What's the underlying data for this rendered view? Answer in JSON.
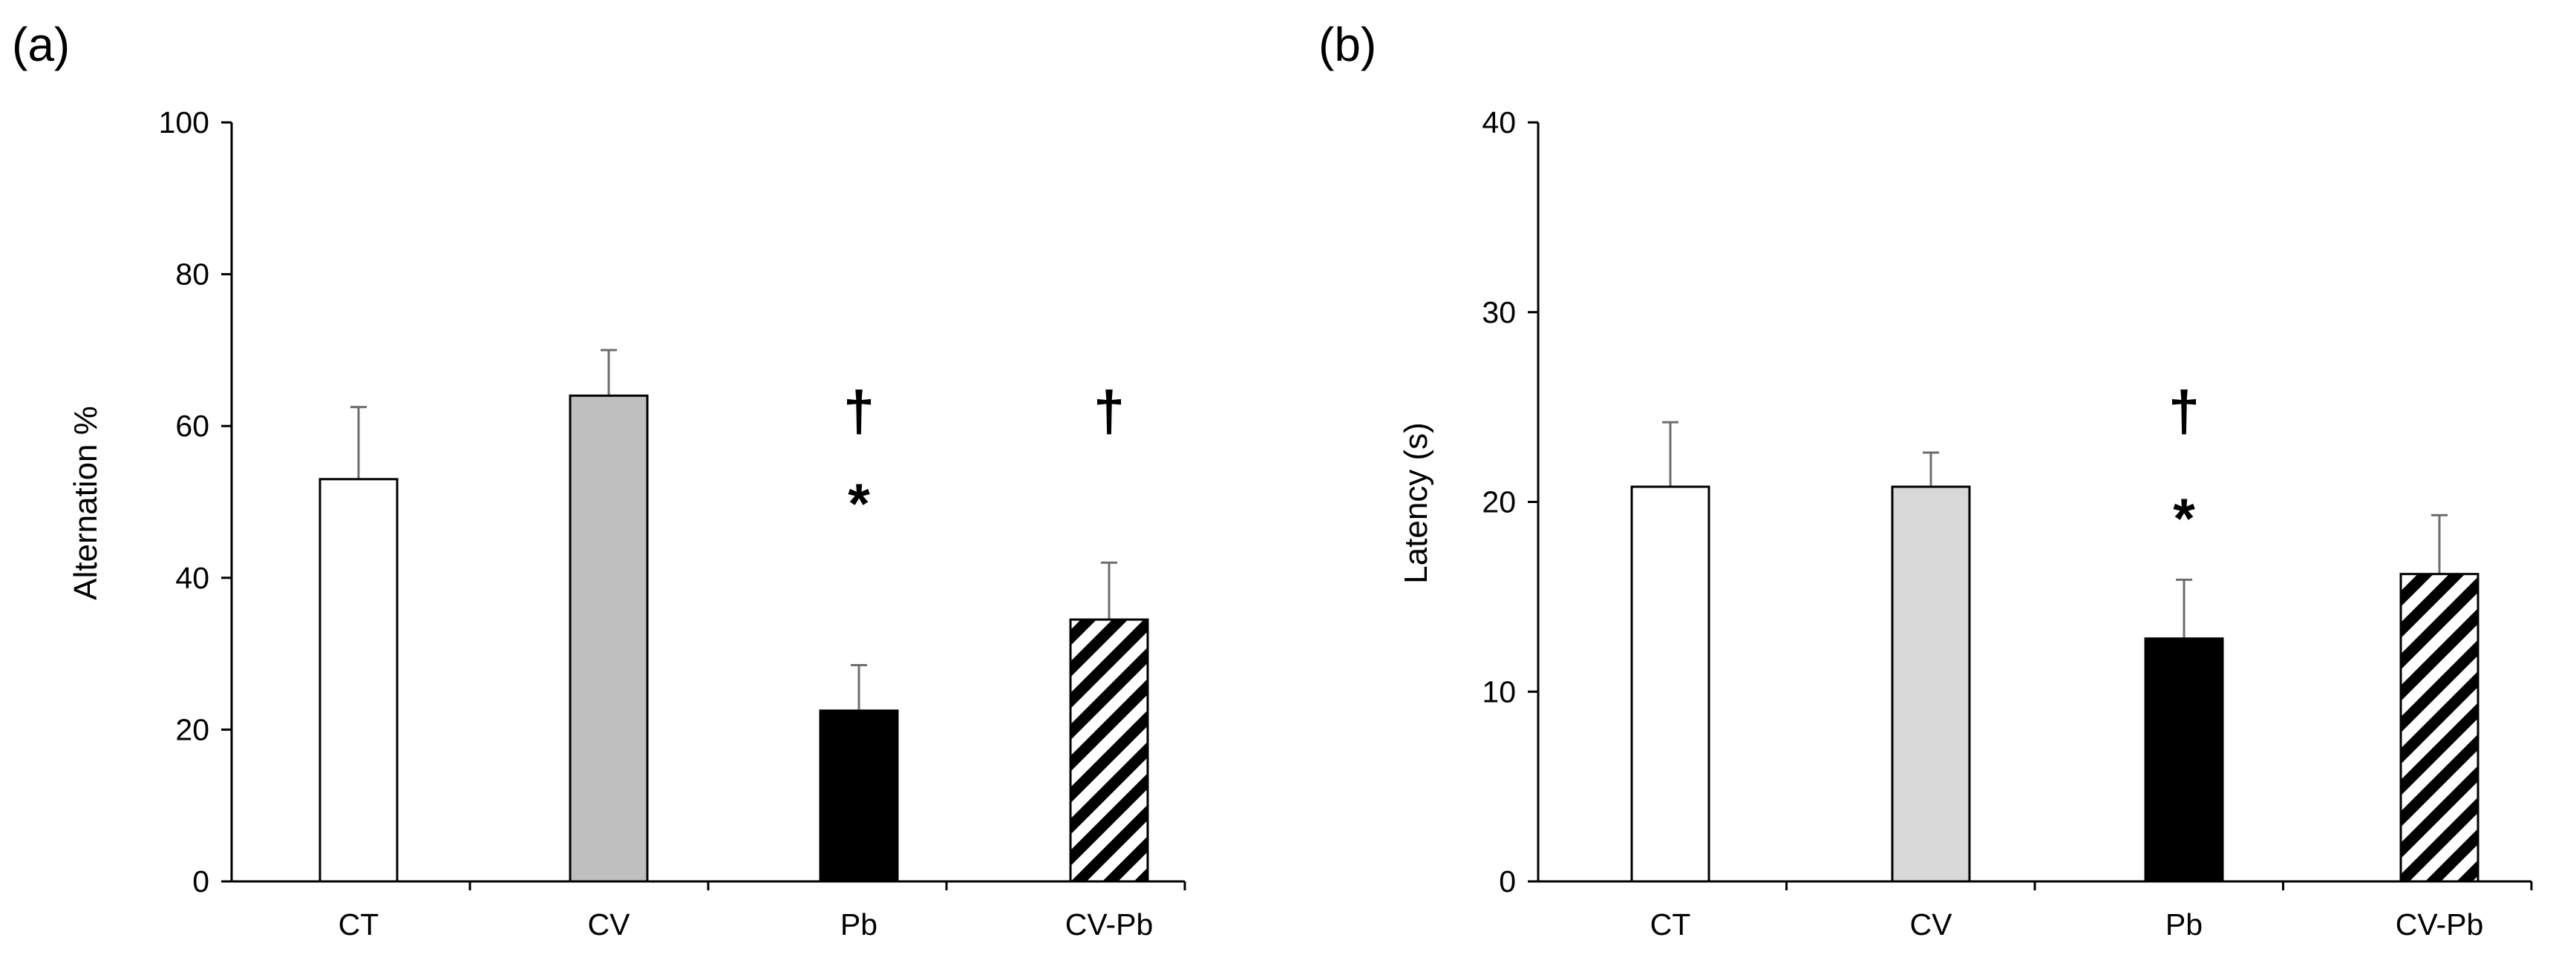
{
  "chart_data": [
    {
      "type": "bar",
      "panel_label": "(a)",
      "title": "",
      "xlabel": "",
      "ylabel": "Alternation %",
      "ylim": [
        0,
        100
      ],
      "yticks": [
        "0",
        "20",
        "40",
        "60",
        "80",
        "100"
      ],
      "categories": [
        "CT",
        "CV",
        "Pb",
        "CV-Pb"
      ],
      "values": [
        53,
        64,
        22.5,
        34.5
      ],
      "errors": [
        9.5,
        6,
        6,
        7.5
      ],
      "fills": [
        "white",
        "#bfbfbf",
        "black",
        "hatch"
      ],
      "annotations": [
        {
          "category": "Pb",
          "dagger": "†",
          "star": "*"
        },
        {
          "category": "CV-Pb",
          "dagger": "†",
          "star": ""
        }
      ]
    },
    {
      "type": "bar",
      "panel_label": "(b)",
      "title": "",
      "xlabel": "",
      "ylabel": "Latency (s)",
      "ylim": [
        0,
        40
      ],
      "yticks": [
        "0",
        "10",
        "20",
        "30",
        "40"
      ],
      "categories": [
        "CT",
        "CV",
        "Pb",
        "CV-Pb"
      ],
      "values": [
        20.8,
        20.8,
        12.8,
        16.2
      ],
      "errors": [
        3.4,
        1.8,
        3.1,
        3.1
      ],
      "fills": [
        "white",
        "#d9d9d9",
        "black",
        "hatch"
      ],
      "annotations": [
        {
          "category": "Pb",
          "dagger": "†",
          "star": "*"
        }
      ]
    }
  ]
}
